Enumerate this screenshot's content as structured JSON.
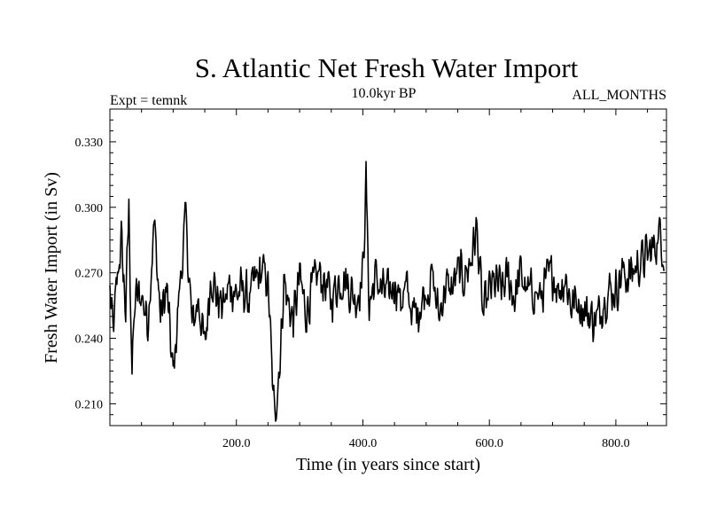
{
  "chart_data": {
    "type": "line",
    "title": "S. Atlantic Net Fresh Water Import",
    "subtitle": "10.0kyr BP",
    "experiment_label": "Expt = temnk",
    "months_label": "ALL_MONTHS",
    "xlabel": "Time (in years since start)",
    "ylabel": "Fresh Water Import (in Sv)",
    "xlim": [
      0,
      880
    ],
    "ylim": [
      0.2,
      0.345
    ],
    "xticks": [
      200,
      400,
      600,
      800
    ],
    "xtick_labels": [
      "200.0",
      "400.0",
      "600.0",
      "800.0"
    ],
    "yticks": [
      0.21,
      0.24,
      0.27,
      0.3,
      0.33
    ],
    "ytick_labels": [
      "0.210",
      "0.240",
      "0.270",
      "0.300",
      "0.330"
    ],
    "grid": false,
    "series": [
      {
        "name": "Net fresh water import",
        "color": "#000000",
        "anchors": [
          {
            "x": 0,
            "y": 0.262
          },
          {
            "x": 5,
            "y": 0.242
          },
          {
            "x": 12,
            "y": 0.268
          },
          {
            "x": 18,
            "y": 0.285
          },
          {
            "x": 25,
            "y": 0.252
          },
          {
            "x": 30,
            "y": 0.3
          },
          {
            "x": 35,
            "y": 0.225
          },
          {
            "x": 40,
            "y": 0.258
          },
          {
            "x": 50,
            "y": 0.26
          },
          {
            "x": 60,
            "y": 0.248
          },
          {
            "x": 70,
            "y": 0.293
          },
          {
            "x": 80,
            "y": 0.25
          },
          {
            "x": 90,
            "y": 0.262
          },
          {
            "x": 100,
            "y": 0.222
          },
          {
            "x": 110,
            "y": 0.262
          },
          {
            "x": 120,
            "y": 0.295
          },
          {
            "x": 130,
            "y": 0.245
          },
          {
            "x": 140,
            "y": 0.258
          },
          {
            "x": 150,
            "y": 0.235
          },
          {
            "x": 160,
            "y": 0.27
          },
          {
            "x": 170,
            "y": 0.258
          },
          {
            "x": 180,
            "y": 0.255
          },
          {
            "x": 190,
            "y": 0.265
          },
          {
            "x": 200,
            "y": 0.26
          },
          {
            "x": 210,
            "y": 0.262
          },
          {
            "x": 220,
            "y": 0.258
          },
          {
            "x": 230,
            "y": 0.266
          },
          {
            "x": 240,
            "y": 0.27
          },
          {
            "x": 248,
            "y": 0.268
          },
          {
            "x": 252,
            "y": 0.255
          },
          {
            "x": 256,
            "y": 0.225
          },
          {
            "x": 260,
            "y": 0.205
          },
          {
            "x": 265,
            "y": 0.218
          },
          {
            "x": 270,
            "y": 0.235
          },
          {
            "x": 275,
            "y": 0.268
          },
          {
            "x": 280,
            "y": 0.258
          },
          {
            "x": 290,
            "y": 0.248
          },
          {
            "x": 300,
            "y": 0.268
          },
          {
            "x": 310,
            "y": 0.252
          },
          {
            "x": 320,
            "y": 0.262
          },
          {
            "x": 330,
            "y": 0.27
          },
          {
            "x": 340,
            "y": 0.265
          },
          {
            "x": 350,
            "y": 0.258
          },
          {
            "x": 360,
            "y": 0.265
          },
          {
            "x": 370,
            "y": 0.268
          },
          {
            "x": 380,
            "y": 0.262
          },
          {
            "x": 390,
            "y": 0.258
          },
          {
            "x": 400,
            "y": 0.27
          },
          {
            "x": 405,
            "y": 0.312
          },
          {
            "x": 410,
            "y": 0.255
          },
          {
            "x": 420,
            "y": 0.268
          },
          {
            "x": 430,
            "y": 0.262
          },
          {
            "x": 440,
            "y": 0.26
          },
          {
            "x": 450,
            "y": 0.266
          },
          {
            "x": 460,
            "y": 0.258
          },
          {
            "x": 470,
            "y": 0.262
          },
          {
            "x": 480,
            "y": 0.25
          },
          {
            "x": 490,
            "y": 0.255
          },
          {
            "x": 500,
            "y": 0.262
          },
          {
            "x": 510,
            "y": 0.268
          },
          {
            "x": 520,
            "y": 0.25
          },
          {
            "x": 530,
            "y": 0.264
          },
          {
            "x": 540,
            "y": 0.262
          },
          {
            "x": 550,
            "y": 0.27
          },
          {
            "x": 560,
            "y": 0.268
          },
          {
            "x": 570,
            "y": 0.275
          },
          {
            "x": 580,
            "y": 0.29
          },
          {
            "x": 590,
            "y": 0.25
          },
          {
            "x": 600,
            "y": 0.262
          },
          {
            "x": 610,
            "y": 0.265
          },
          {
            "x": 620,
            "y": 0.262
          },
          {
            "x": 630,
            "y": 0.268
          },
          {
            "x": 640,
            "y": 0.258
          },
          {
            "x": 650,
            "y": 0.27
          },
          {
            "x": 660,
            "y": 0.26
          },
          {
            "x": 670,
            "y": 0.262
          },
          {
            "x": 680,
            "y": 0.258
          },
          {
            "x": 690,
            "y": 0.266
          },
          {
            "x": 700,
            "y": 0.27
          },
          {
            "x": 710,
            "y": 0.262
          },
          {
            "x": 720,
            "y": 0.268
          },
          {
            "x": 730,
            "y": 0.255
          },
          {
            "x": 740,
            "y": 0.258
          },
          {
            "x": 750,
            "y": 0.252
          },
          {
            "x": 760,
            "y": 0.25
          },
          {
            "x": 770,
            "y": 0.248
          },
          {
            "x": 780,
            "y": 0.258
          },
          {
            "x": 790,
            "y": 0.262
          },
          {
            "x": 800,
            "y": 0.262
          },
          {
            "x": 810,
            "y": 0.27
          },
          {
            "x": 820,
            "y": 0.268
          },
          {
            "x": 830,
            "y": 0.272
          },
          {
            "x": 840,
            "y": 0.275
          },
          {
            "x": 850,
            "y": 0.278
          },
          {
            "x": 860,
            "y": 0.282
          },
          {
            "x": 870,
            "y": 0.288
          },
          {
            "x": 876,
            "y": 0.28
          }
        ],
        "noise_amplitude_sv": 0.013
      }
    ]
  }
}
